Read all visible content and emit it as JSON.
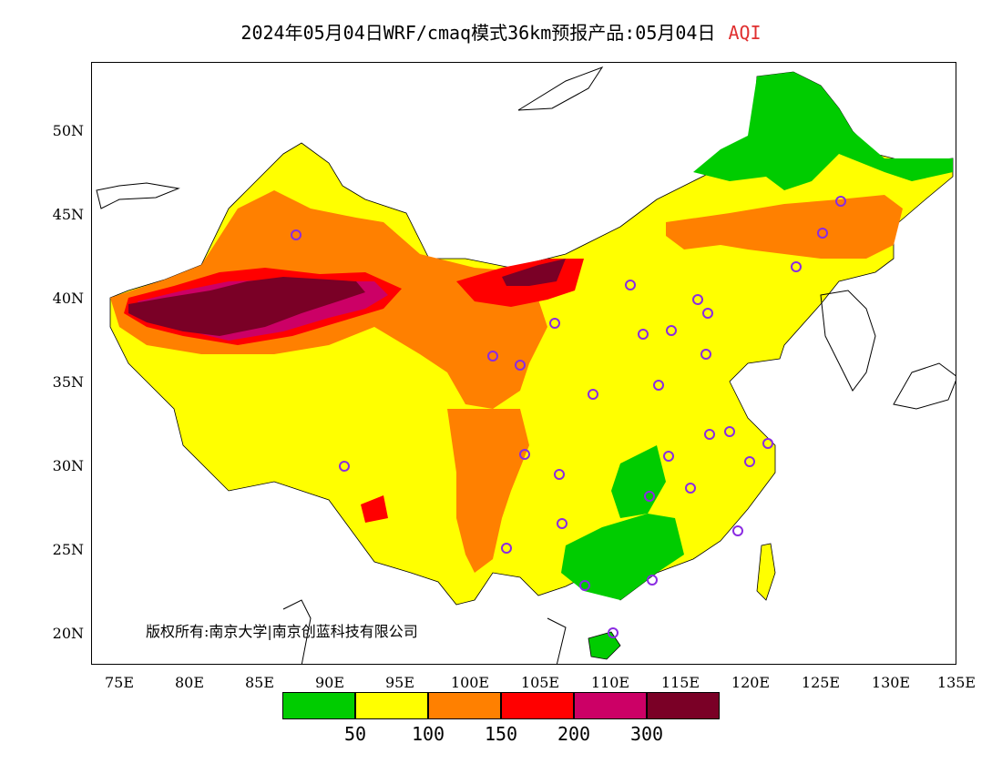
{
  "title": {
    "main": "2024年05月04日WRF/cmaq模式36km预报产品:05月04日",
    "variable": "AQI",
    "variable_color": "#e03030"
  },
  "axes": {
    "lat_ticks": [
      "50N",
      "45N",
      "40N",
      "35N",
      "30N",
      "25N",
      "20N"
    ],
    "lon_ticks": [
      "75E",
      "80E",
      "85E",
      "90E",
      "95E",
      "100E",
      "105E",
      "110E",
      "115E",
      "120E",
      "125E",
      "130E",
      "135E"
    ]
  },
  "copyright": "版权所有:南京大学|南京创蓝科技有限公司",
  "legend": {
    "colors": [
      "#00cc00",
      "#ffff00",
      "#ff8000",
      "#ff0000",
      "#cc0066",
      "#7a0026"
    ],
    "labels": [
      "50",
      "100",
      "150",
      "200",
      "300"
    ]
  }
}
